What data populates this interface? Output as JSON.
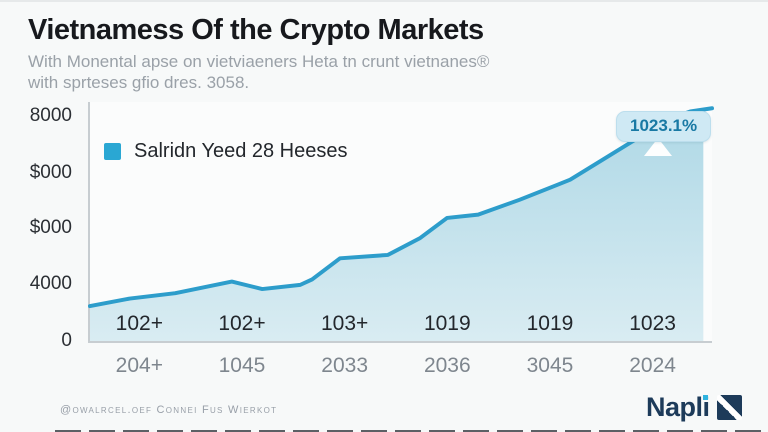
{
  "header": {
    "title": "Vietnamess Of the Crypto Markets",
    "subtitle_line1": "With Monental apse on vietviaeners Heta tn crunt vietnanes®",
    "subtitle_line2": "with sprteses gfio dres. 3058."
  },
  "legend": {
    "label": "Salridn Yeed 28 Heeses",
    "swatch_color": "#2aa7d3"
  },
  "annotation": {
    "value": "1023.1%"
  },
  "y_axis": {
    "ticks": [
      "8000",
      "$000",
      "$000",
      "4000",
      "0"
    ]
  },
  "x_axis": {
    "inner_labels": [
      "102+",
      "102+",
      "103+",
      "1019",
      "1019",
      "1023"
    ],
    "outer_labels": [
      "204+",
      "1045",
      "2033",
      "2036",
      "3045",
      "2024"
    ]
  },
  "footer": {
    "credit": "@owalrcel.oef Connei Fus Wierkot",
    "brand": "Napli"
  },
  "colors": {
    "accent_blue": "#2d9dcb",
    "tooltip_bg": "#cfe9f4",
    "tooltip_text": "#1979a4",
    "brand_navy": "#1d3b5a",
    "brand_cyan": "#2fb3df"
  },
  "chart_data": {
    "type": "area",
    "title": "Vietnamess Of the Crypto Markets",
    "legend_entries": [
      "Salridn Yeed 28 Heeses"
    ],
    "legend_position": "top-left",
    "grid": false,
    "ylim": [
      0,
      8000
    ],
    "y_tick_labels": [
      "8000",
      "$000",
      "$000",
      "4000",
      "0"
    ],
    "x_tick_labels_inner": [
      "102+",
      "102+",
      "103+",
      "1019",
      "1019",
      "1023"
    ],
    "x_tick_labels_outer": [
      "204+",
      "1045",
      "2033",
      "2036",
      "3045",
      "2024"
    ],
    "annotation": {
      "text": "1023.1%",
      "x_percent": 92,
      "value": 7400
    },
    "series": [
      {
        "name": "Salridn Yeed 28 Heeses",
        "x_percent": [
          0,
          6.4,
          13.7,
          22.8,
          27.7,
          33.8,
          35.7,
          40.2,
          47.9,
          53.1,
          57.4,
          62.4,
          69.1,
          75.2,
          77.2,
          83.6,
          89.7,
          93.6,
          96.5,
          100
        ],
        "values": [
          1170,
          1420,
          1600,
          1990,
          1740,
          1880,
          2060,
          2770,
          2880,
          3450,
          4120,
          4230,
          4730,
          5230,
          5400,
          6220,
          7000,
          7470,
          7680,
          7790
        ]
      }
    ],
    "fill_end_x_percent": 98.6,
    "colors": {
      "line": "#2d9dcb",
      "fill_top": "#aed8e6",
      "fill_bottom": "#d9ecf2"
    }
  }
}
